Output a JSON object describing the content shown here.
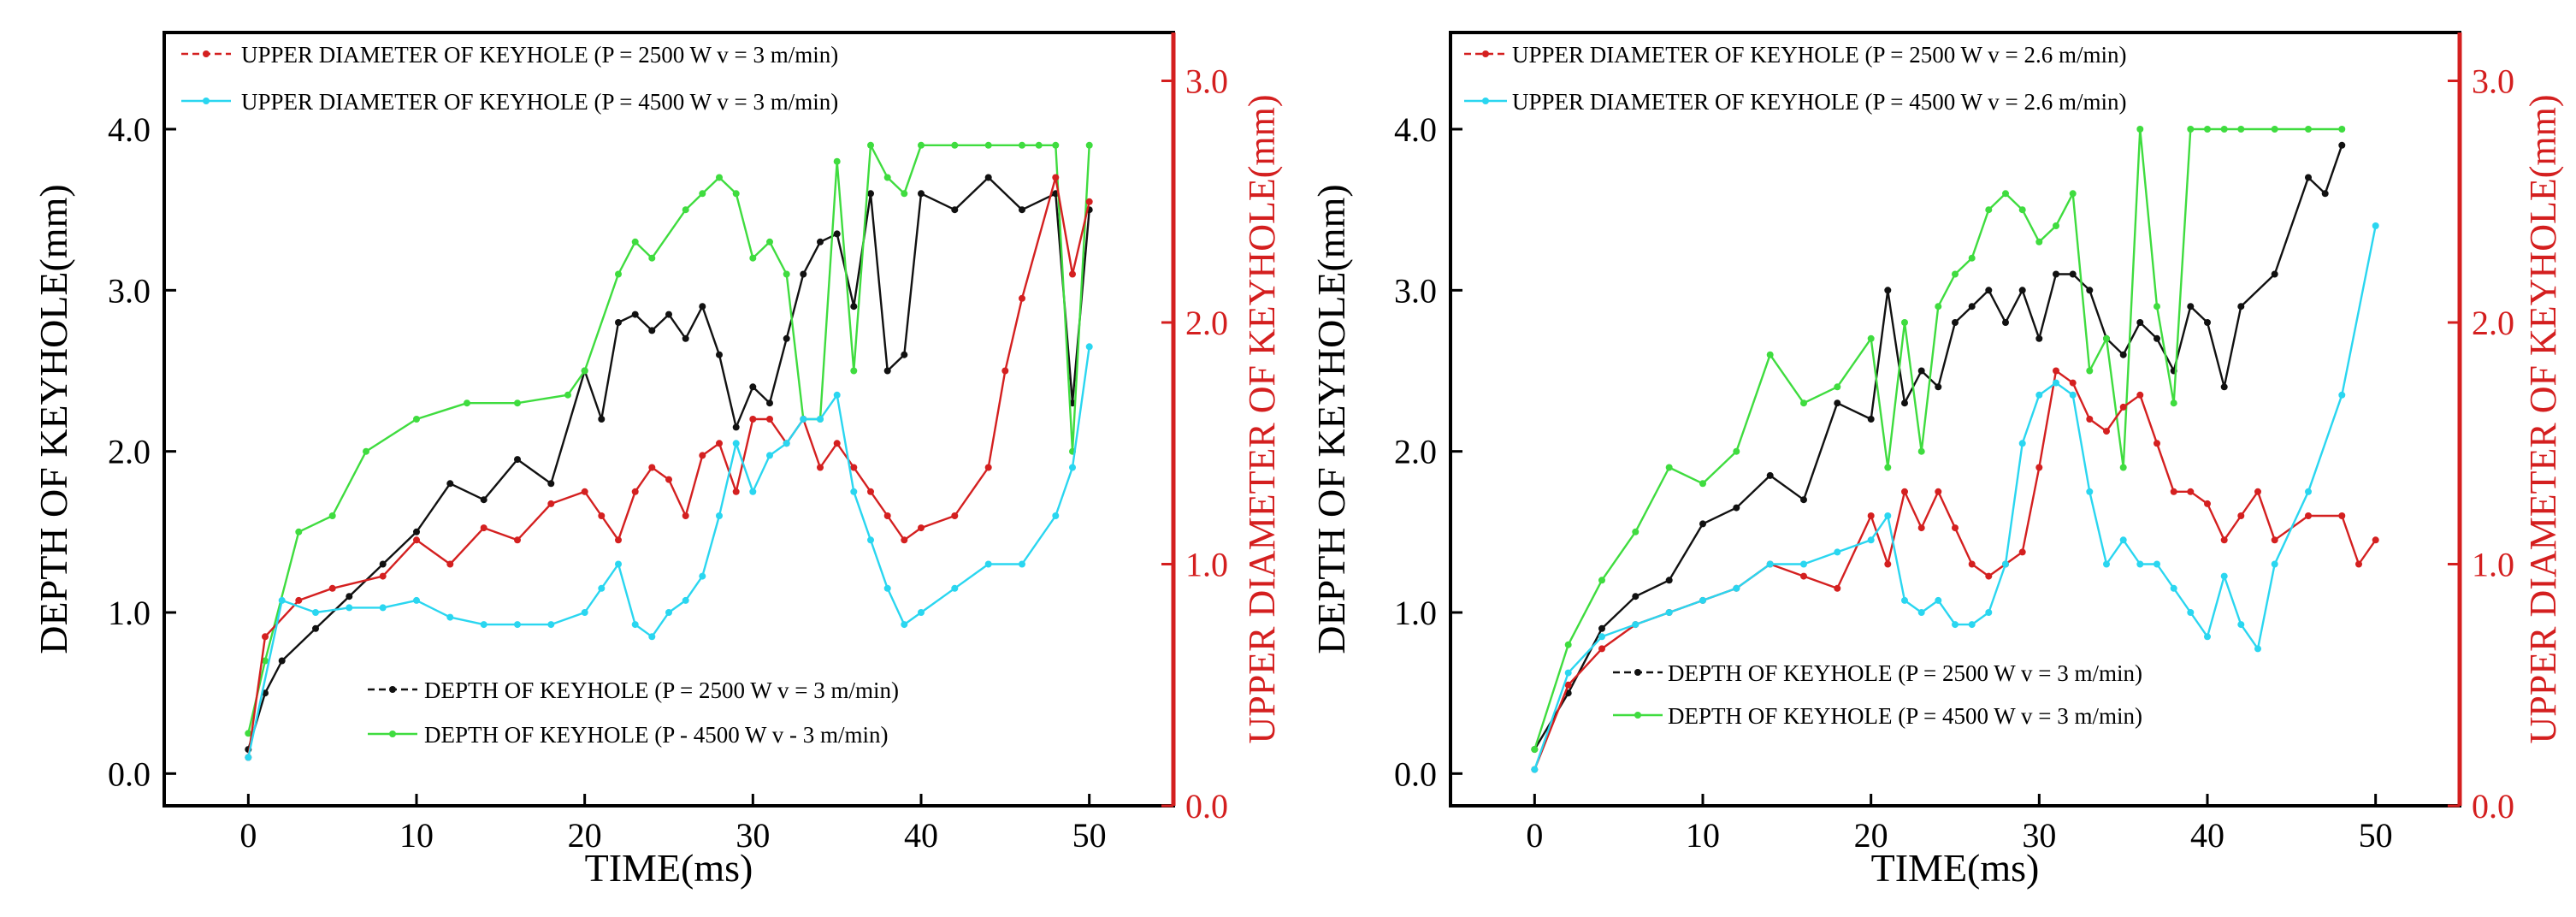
{
  "colors": {
    "depth_2500": "#111111",
    "depth_4500": "#3fdc3f",
    "upper_2500": "#d42020",
    "upper_4500": "#2ad6f0",
    "right_axis": "#d41f1f"
  },
  "chart_data": [
    {
      "type": "line",
      "panel": "left",
      "xlabel": "TIME(ms)",
      "ylabel": "DEPTH OF KEYHOLE(mm)",
      "ylabel_right": "UPPER DIAMETER OF KEYHOLE(mm)",
      "xlim": [
        -5,
        55
      ],
      "ylim": [
        -0.2,
        4.6
      ],
      "ylim_right": [
        0.0,
        3.2
      ],
      "x_ticks": [
        "0",
        "10",
        "20",
        "30",
        "40",
        "50"
      ],
      "x_tick_values": [
        0,
        10,
        20,
        30,
        40,
        50
      ],
      "y_ticks": [
        "0.0",
        "1.0",
        "2.0",
        "3.0",
        "4.0"
      ],
      "y_tick_values": [
        0,
        1,
        2,
        3,
        4
      ],
      "y_right_ticks": [
        "0.0",
        "1.0",
        "2.0",
        "3.0"
      ],
      "y_right_tick_values": [
        0,
        1,
        2,
        3
      ],
      "top_legend": "top-left",
      "bottom_legend": "bottom-right",
      "series": [
        {
          "name": "DEPTH OF KEYHOLE (P = 2500 W v = 3 m/min)",
          "legend_label": "DEPTH OF KEYHOLE (P = 2500 W v = 3 m/min)",
          "axis": "left",
          "color_key": "depth_2500",
          "legend_group": "bottom",
          "x": [
            0,
            1,
            2,
            4,
            6,
            8,
            10,
            12,
            14,
            16,
            18,
            20,
            21,
            22,
            23,
            24,
            25,
            26,
            27,
            28,
            29,
            30,
            31,
            32,
            33,
            34,
            35,
            36,
            37,
            38,
            39,
            40,
            42,
            44,
            46,
            48,
            49,
            50
          ],
          "values": [
            0.15,
            0.5,
            0.7,
            0.9,
            1.1,
            1.3,
            1.5,
            1.8,
            1.7,
            1.95,
            1.8,
            2.5,
            2.2,
            2.8,
            2.85,
            2.75,
            2.85,
            2.7,
            2.9,
            2.6,
            2.15,
            2.4,
            2.3,
            2.7,
            3.1,
            3.3,
            3.35,
            2.9,
            3.6,
            2.5,
            2.6,
            3.6,
            3.5,
            3.7,
            3.5,
            3.6,
            2.3,
            3.5
          ]
        },
        {
          "name": "DEPTH OF KEYHOLE (P = 4500 W v = 3 m/min)",
          "legend_label": "DEPTH OF KEYHOLE (P - 4500 W v - 3 m/min)",
          "axis": "left",
          "color_key": "depth_4500",
          "legend_group": "bottom",
          "x": [
            0,
            1,
            3,
            5,
            7,
            10,
            13,
            16,
            19,
            20,
            22,
            23,
            24,
            26,
            27,
            28,
            29,
            30,
            31,
            32,
            33,
            34,
            35,
            36,
            37,
            38,
            39,
            40,
            42,
            44,
            46,
            47,
            48,
            49,
            50
          ],
          "values": [
            0.25,
            0.7,
            1.5,
            1.6,
            2.0,
            2.2,
            2.3,
            2.3,
            2.35,
            2.5,
            3.1,
            3.3,
            3.2,
            3.5,
            3.6,
            3.7,
            3.6,
            3.2,
            3.3,
            3.1,
            2.2,
            2.2,
            3.8,
            2.5,
            3.9,
            3.7,
            3.6,
            3.9,
            3.9,
            3.9,
            3.9,
            3.9,
            3.9,
            2.0,
            3.9
          ]
        },
        {
          "name": "UPPER DIAMETER OF KEYHOLE (P = 2500 W v = 3 m/min)",
          "legend_label": "UPPER DIAMETER OF KEYHOLE (P = 2500 W v = 3 m/min)",
          "axis": "right",
          "color_key": "upper_2500",
          "legend_group": "top",
          "x": [
            0,
            1,
            3,
            5,
            8,
            10,
            12,
            14,
            16,
            18,
            20,
            21,
            22,
            23,
            24,
            25,
            26,
            27,
            28,
            29,
            30,
            31,
            32,
            33,
            34,
            35,
            36,
            37,
            38,
            39,
            40,
            42,
            44,
            45,
            46,
            48,
            49,
            50
          ],
          "values": [
            0.2,
            0.7,
            0.85,
            0.9,
            0.95,
            1.1,
            1.0,
            1.15,
            1.1,
            1.25,
            1.3,
            1.2,
            1.1,
            1.3,
            1.4,
            1.35,
            1.2,
            1.45,
            1.5,
            1.3,
            1.6,
            1.6,
            1.5,
            1.6,
            1.4,
            1.5,
            1.4,
            1.3,
            1.2,
            1.1,
            1.15,
            1.2,
            1.4,
            1.8,
            2.1,
            2.6,
            2.2,
            2.5
          ]
        },
        {
          "name": "UPPER DIAMETER OF KEYHOLE (P = 4500 W v = 3 m/min)",
          "legend_label": "UPPER DIAMETER OF KEYHOLE (P = 4500 W v = 3 m/min)",
          "axis": "right",
          "color_key": "upper_4500",
          "legend_group": "top",
          "x": [
            0,
            2,
            4,
            6,
            8,
            10,
            12,
            14,
            16,
            18,
            20,
            21,
            22,
            23,
            24,
            25,
            26,
            27,
            28,
            29,
            30,
            31,
            32,
            33,
            34,
            35,
            36,
            37,
            38,
            39,
            40,
            42,
            44,
            46,
            48,
            49,
            50
          ],
          "values": [
            0.2,
            0.85,
            0.8,
            0.82,
            0.82,
            0.85,
            0.78,
            0.75,
            0.75,
            0.75,
            0.8,
            0.9,
            1.0,
            0.75,
            0.7,
            0.8,
            0.85,
            0.95,
            1.2,
            1.5,
            1.3,
            1.45,
            1.5,
            1.6,
            1.6,
            1.7,
            1.3,
            1.1,
            0.9,
            0.75,
            0.8,
            0.9,
            1.0,
            1.0,
            1.2,
            1.4,
            1.9
          ]
        }
      ]
    },
    {
      "type": "line",
      "panel": "right",
      "xlabel": "TIME(ms)",
      "ylabel": "DEPTH OF KEYHOLE(mm)",
      "ylabel_right": "UPPER DIAMETER OF KEYHOLE(mm)",
      "xlim": [
        -5,
        55
      ],
      "ylim": [
        -0.2,
        4.6
      ],
      "ylim_right": [
        0.0,
        3.2
      ],
      "x_ticks": [
        "0",
        "10",
        "20",
        "30",
        "40",
        "50"
      ],
      "x_tick_values": [
        0,
        10,
        20,
        30,
        40,
        50
      ],
      "y_ticks": [
        "0.0",
        "1.0",
        "2.0",
        "3.0",
        "4.0"
      ],
      "y_tick_values": [
        0,
        1,
        2,
        3,
        4
      ],
      "y_right_ticks": [
        "0.0",
        "1.0",
        "2.0",
        "3.0"
      ],
      "y_right_tick_values": [
        0,
        1,
        2,
        3
      ],
      "top_legend": "top-left",
      "bottom_legend": "bottom-left",
      "series": [
        {
          "name": "DEPTH OF KEYHOLE (P = 2500 W v = 3 m/min)",
          "legend_label": "DEPTH OF KEYHOLE (P = 2500 W v = 3 m/min)",
          "axis": "left",
          "color_key": "depth_2500",
          "legend_group": "bottom",
          "x": [
            0,
            2,
            4,
            6,
            8,
            10,
            12,
            14,
            16,
            18,
            20,
            21,
            22,
            23,
            24,
            25,
            26,
            27,
            28,
            29,
            30,
            31,
            32,
            33,
            34,
            35,
            36,
            37,
            38,
            39,
            40,
            41,
            42,
            44,
            46,
            47,
            48
          ],
          "values": [
            0.15,
            0.5,
            0.9,
            1.1,
            1.2,
            1.55,
            1.65,
            1.85,
            1.7,
            2.3,
            2.2,
            3.0,
            2.3,
            2.5,
            2.4,
            2.8,
            2.9,
            3.0,
            2.8,
            3.0,
            2.7,
            3.1,
            3.1,
            3.0,
            2.7,
            2.6,
            2.8,
            2.7,
            2.5,
            2.9,
            2.8,
            2.4,
            2.9,
            3.1,
            3.7,
            3.6,
            3.9
          ]
        },
        {
          "name": "DEPTH OF KEYHOLE (P = 4500 W v = 3 m/min)",
          "legend_label": "DEPTH OF KEYHOLE (P = 4500 W v = 3 m/min)",
          "axis": "left",
          "color_key": "depth_4500",
          "legend_group": "bottom",
          "x": [
            0,
            2,
            4,
            6,
            8,
            10,
            12,
            14,
            16,
            18,
            20,
            21,
            22,
            23,
            24,
            25,
            26,
            27,
            28,
            29,
            30,
            31,
            32,
            33,
            34,
            35,
            36,
            37,
            38,
            39,
            40,
            41,
            42,
            44,
            46,
            48
          ],
          "values": [
            0.15,
            0.8,
            1.2,
            1.5,
            1.9,
            1.8,
            2.0,
            2.6,
            2.3,
            2.4,
            2.7,
            1.9,
            2.8,
            2.0,
            2.9,
            3.1,
            3.2,
            3.5,
            3.6,
            3.5,
            3.3,
            3.4,
            3.6,
            2.5,
            2.7,
            1.9,
            4.0,
            2.9,
            2.3,
            4.0,
            4.0,
            4.0,
            4.0,
            4.0,
            4.0,
            4.0
          ]
        },
        {
          "name": "UPPER DIAMETER OF KEYHOLE (P = 2500 W v = 2.6 m/min)",
          "legend_label": "UPPER DIAMETER OF KEYHOLE (P = 2500 W v = 2.6 m/min)",
          "axis": "right",
          "color_key": "upper_2500",
          "legend_group": "top",
          "x": [
            0,
            2,
            4,
            6,
            8,
            10,
            12,
            14,
            16,
            18,
            20,
            21,
            22,
            23,
            24,
            25,
            26,
            27,
            28,
            29,
            30,
            31,
            32,
            33,
            34,
            35,
            36,
            37,
            38,
            39,
            40,
            41,
            42,
            43,
            44,
            46,
            48,
            49,
            50
          ],
          "values": [
            0.15,
            0.5,
            0.65,
            0.75,
            0.8,
            0.85,
            0.9,
            1.0,
            0.95,
            0.9,
            1.2,
            1.0,
            1.3,
            1.15,
            1.3,
            1.15,
            1.0,
            0.95,
            1.0,
            1.05,
            1.4,
            1.8,
            1.75,
            1.6,
            1.55,
            1.65,
            1.7,
            1.5,
            1.3,
            1.3,
            1.25,
            1.1,
            1.2,
            1.3,
            1.1,
            1.2,
            1.2,
            1.0,
            1.1
          ]
        },
        {
          "name": "UPPER DIAMETER OF KEYHOLE (P = 4500 W v = 2.6 m/min)",
          "legend_label": "UPPER DIAMETER OF KEYHOLE (P = 4500 W v = 2.6 m/min)",
          "axis": "right",
          "color_key": "upper_4500",
          "legend_group": "top",
          "x": [
            0,
            2,
            4,
            6,
            8,
            10,
            12,
            14,
            16,
            18,
            20,
            21,
            22,
            23,
            24,
            25,
            26,
            27,
            28,
            29,
            30,
            31,
            32,
            33,
            34,
            35,
            36,
            37,
            38,
            39,
            40,
            41,
            42,
            43,
            44,
            46,
            48,
            50
          ],
          "values": [
            0.15,
            0.55,
            0.7,
            0.75,
            0.8,
            0.85,
            0.9,
            1.0,
            1.0,
            1.05,
            1.1,
            1.2,
            0.85,
            0.8,
            0.85,
            0.75,
            0.75,
            0.8,
            1.0,
            1.5,
            1.7,
            1.75,
            1.7,
            1.3,
            1.0,
            1.1,
            1.0,
            1.0,
            0.9,
            0.8,
            0.7,
            0.95,
            0.75,
            0.65,
            1.0,
            1.3,
            1.7,
            2.4
          ]
        }
      ]
    }
  ]
}
